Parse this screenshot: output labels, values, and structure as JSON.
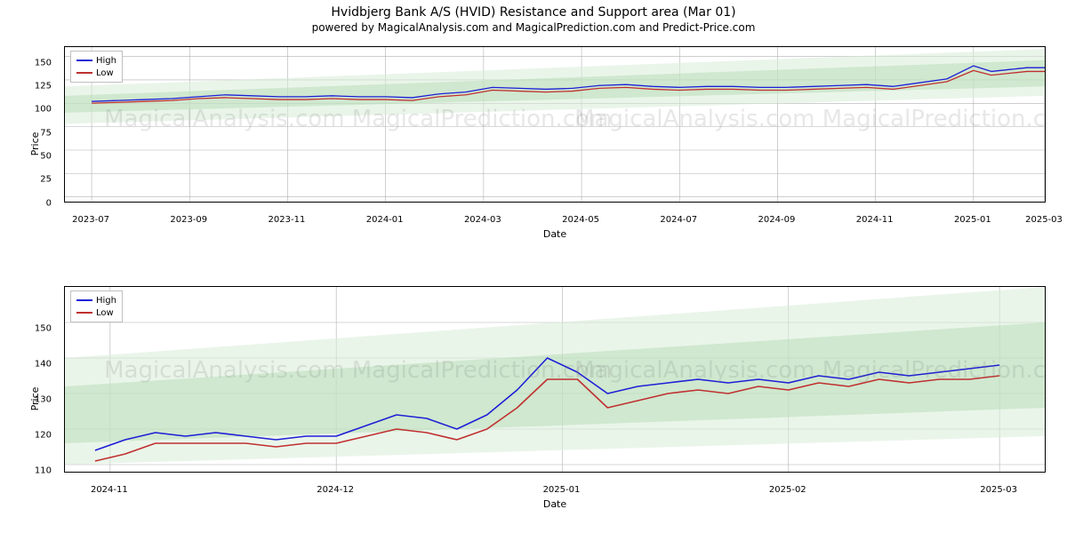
{
  "title": "Hvidbjerg Bank A/S (HVID) Resistance and Support area (Mar 01)",
  "subtitle": "powered by MagicalAnalysis.com and MagicalPrediction.com and Predict-Price.com",
  "legend": {
    "high": "High",
    "low": "Low"
  },
  "colors": {
    "high": "#1f1fd6",
    "low": "#c03030",
    "grid": "#b0b0b0",
    "border": "#000000",
    "background": "#ffffff",
    "band_fill": "#b8dcb8",
    "band_fill_light": "#d8ecd8",
    "watermark": "rgba(120,120,120,0.18)"
  },
  "watermark_text": "MagicalAnalysis.com   MagicalPrediction.com",
  "top_chart": {
    "type": "line",
    "xlabel": "Date",
    "ylabel": "Price",
    "ylim": [
      -5,
      160
    ],
    "yticks": [
      0,
      25,
      50,
      75,
      100,
      125,
      150
    ],
    "xlim": [
      0,
      220
    ],
    "xticks": [
      {
        "x": 6,
        "label": "2023-07"
      },
      {
        "x": 28,
        "label": "2023-09"
      },
      {
        "x": 50,
        "label": "2023-11"
      },
      {
        "x": 72,
        "label": "2024-01"
      },
      {
        "x": 94,
        "label": "2024-03"
      },
      {
        "x": 116,
        "label": "2024-05"
      },
      {
        "x": 138,
        "label": "2024-07"
      },
      {
        "x": 160,
        "label": "2024-09"
      },
      {
        "x": 182,
        "label": "2024-11"
      },
      {
        "x": 204,
        "label": "2025-01"
      },
      {
        "x": 220,
        "label": "2025-03"
      }
    ],
    "band": {
      "outer": {
        "x": [
          0,
          220
        ],
        "y_lo": [
          78,
          108
        ],
        "y_hi": [
          118,
          158
        ]
      },
      "inner": {
        "x": [
          0,
          220
        ],
        "y_lo": [
          90,
          118
        ],
        "y_hi": [
          108,
          146
        ]
      }
    },
    "series": {
      "high": {
        "x": [
          6,
          12,
          18,
          24,
          30,
          36,
          42,
          48,
          54,
          60,
          66,
          72,
          78,
          84,
          90,
          96,
          102,
          108,
          114,
          120,
          126,
          132,
          138,
          144,
          150,
          156,
          162,
          168,
          174,
          180,
          186,
          192,
          198,
          204,
          208,
          212,
          216,
          220
        ],
        "y": [
          102,
          103,
          104,
          105,
          107,
          109,
          108,
          107,
          107,
          108,
          107,
          107,
          106,
          110,
          112,
          117,
          116,
          115,
          116,
          119,
          120,
          118,
          117,
          118,
          118,
          117,
          117,
          118,
          119,
          120,
          118,
          122,
          126,
          140,
          134,
          136,
          138,
          138
        ]
      },
      "low": {
        "x": [
          6,
          12,
          18,
          24,
          30,
          36,
          42,
          48,
          54,
          60,
          66,
          72,
          78,
          84,
          90,
          96,
          102,
          108,
          114,
          120,
          126,
          132,
          138,
          144,
          150,
          156,
          162,
          168,
          174,
          180,
          186,
          192,
          198,
          204,
          208,
          212,
          216,
          220
        ],
        "y": [
          100,
          101,
          102,
          103,
          105,
          106,
          105,
          104,
          104,
          105,
          104,
          104,
          103,
          107,
          109,
          114,
          113,
          112,
          113,
          116,
          117,
          115,
          114,
          115,
          115,
          114,
          114,
          115,
          116,
          117,
          115,
          119,
          123,
          135,
          130,
          132,
          134,
          134
        ]
      }
    },
    "line_width": 1.3
  },
  "bottom_chart": {
    "type": "line",
    "xlabel": "Date",
    "ylabel": "Price",
    "ylim": [
      108,
      160
    ],
    "yticks": [
      110,
      120,
      130,
      140,
      150
    ],
    "xlim": [
      0,
      130
    ],
    "xticks": [
      {
        "x": 6,
        "label": "2024-11"
      },
      {
        "x": 36,
        "label": "2024-12"
      },
      {
        "x": 66,
        "label": "2025-01"
      },
      {
        "x": 96,
        "label": "2025-02"
      },
      {
        "x": 124,
        "label": "2025-03"
      }
    ],
    "band": {
      "outer": {
        "x": [
          0,
          130
        ],
        "y_lo": [
          110,
          118
        ],
        "y_hi": [
          140,
          160
        ]
      },
      "inner": {
        "x": [
          0,
          130
        ],
        "y_lo": [
          116,
          126
        ],
        "y_hi": [
          132,
          150
        ]
      }
    },
    "series": {
      "high": {
        "x": [
          4,
          8,
          12,
          16,
          20,
          24,
          28,
          32,
          36,
          40,
          44,
          48,
          52,
          56,
          60,
          64,
          68,
          72,
          76,
          80,
          84,
          88,
          92,
          96,
          100,
          104,
          108,
          112,
          116,
          120,
          124
        ],
        "y": [
          114,
          117,
          119,
          118,
          119,
          118,
          117,
          118,
          118,
          121,
          124,
          123,
          120,
          124,
          131,
          140,
          136,
          130,
          132,
          133,
          134,
          133,
          134,
          133,
          135,
          134,
          136,
          135,
          136,
          137,
          138
        ]
      },
      "low": {
        "x": [
          4,
          8,
          12,
          16,
          20,
          24,
          28,
          32,
          36,
          40,
          44,
          48,
          52,
          56,
          60,
          64,
          68,
          72,
          76,
          80,
          84,
          88,
          92,
          96,
          100,
          104,
          108,
          112,
          116,
          120,
          124
        ],
        "y": [
          111,
          113,
          116,
          116,
          116,
          116,
          115,
          116,
          116,
          118,
          120,
          119,
          117,
          120,
          126,
          134,
          134,
          126,
          128,
          130,
          131,
          130,
          132,
          131,
          133,
          132,
          134,
          133,
          134,
          134,
          135
        ]
      }
    },
    "line_width": 1.6
  },
  "font": {
    "tick_size": 10,
    "label_size": 11,
    "title_size": 14,
    "subtitle_size": 12
  }
}
